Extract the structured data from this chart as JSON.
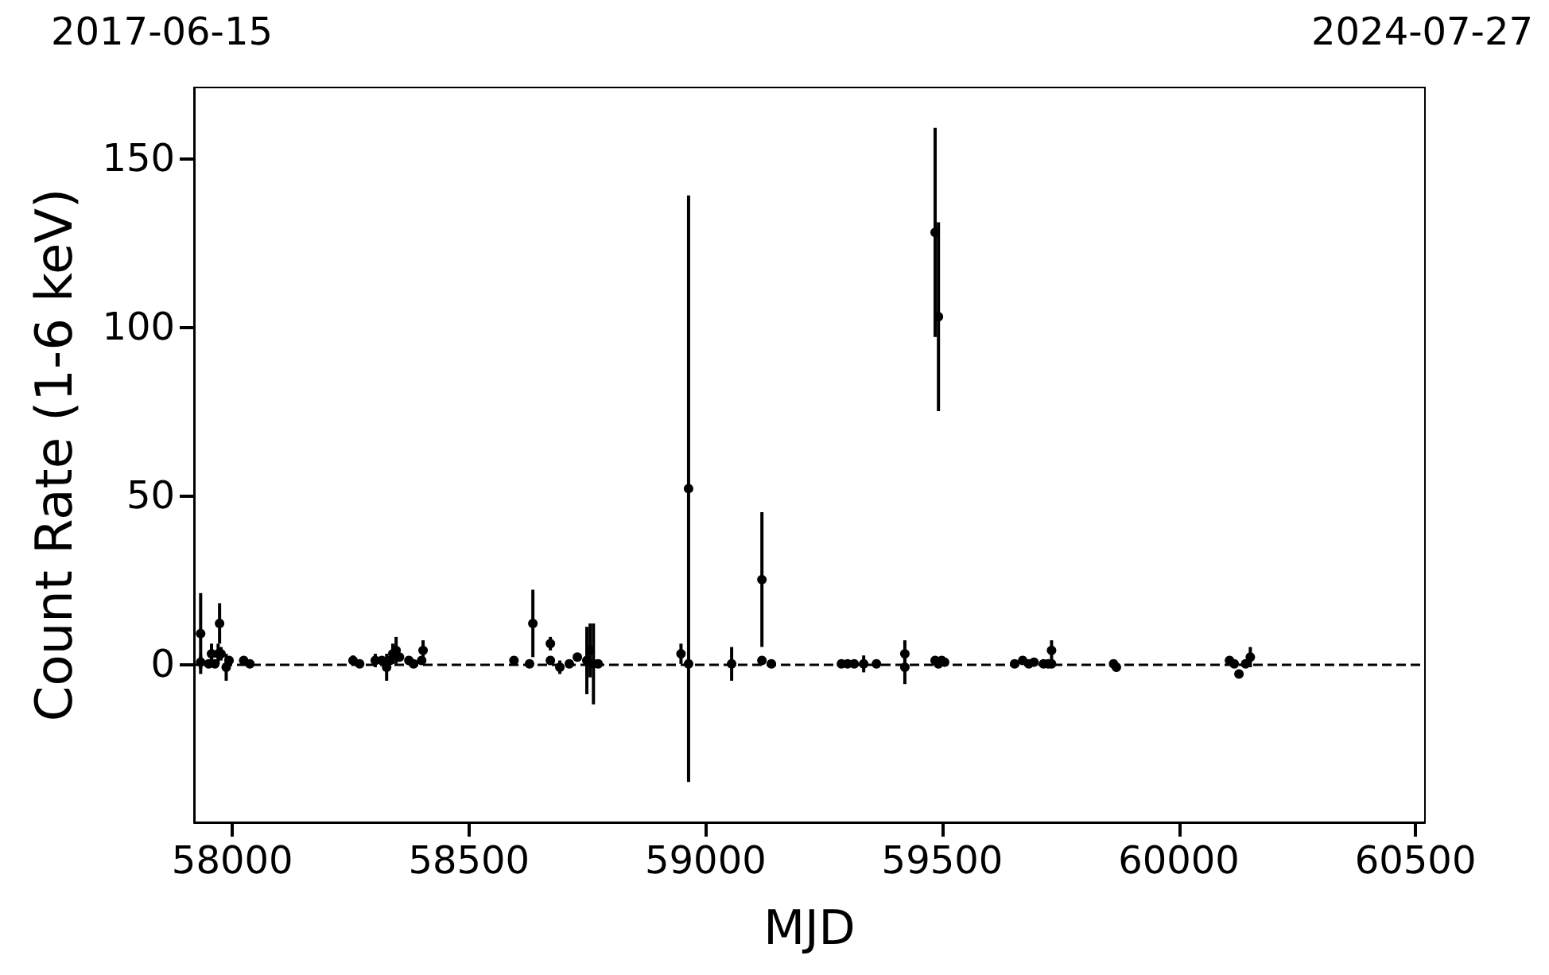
{
  "chart_data": {
    "type": "scatter",
    "xlabel": "MJD",
    "ylabel": "Count Rate (1-6 keV)",
    "annotations": [
      "2017-06-15",
      "2024-07-27"
    ],
    "x": [
      57933,
      57933,
      57950,
      57956,
      57963,
      57970,
      57973,
      57976,
      57987,
      57993,
      58024,
      58037,
      58255,
      58269,
      58302,
      58316,
      58326,
      58333,
      58339,
      58346,
      58353,
      58373,
      58383,
      58400,
      58403,
      58595,
      58628,
      58635,
      58672,
      58672,
      58692,
      58712,
      58729,
      58749,
      58756,
      58763,
      58773,
      58948,
      58964,
      58964,
      59055,
      59119,
      59119,
      59139,
      59287,
      59300,
      59314,
      59334,
      59361,
      59421,
      59421,
      59485,
      59485,
      59492,
      59492,
      59499,
      59505,
      59653,
      59670,
      59683,
      59694,
      59714,
      59724,
      59731,
      59731,
      59862,
      59868,
      60107,
      60117,
      60127,
      60141,
      60151
    ],
    "values": [
      9,
      0.5,
      0,
      3,
      0,
      3,
      12,
      3,
      -1,
      1,
      1,
      0,
      1,
      0,
      1,
      1,
      -1,
      1,
      3,
      4,
      2,
      1,
      0,
      1,
      4,
      1,
      0,
      12,
      6,
      1,
      -1,
      0,
      2,
      1,
      4,
      0,
      0,
      3,
      52,
      0,
      0,
      25,
      1,
      0,
      0,
      0,
      0,
      0,
      0,
      3,
      -1,
      128,
      1,
      103,
      0,
      1,
      0.5,
      0,
      1,
      0,
      0.5,
      0,
      0,
      4,
      0,
      0,
      -1,
      1,
      0,
      -3,
      0,
      2
    ],
    "errors": [
      12,
      2,
      null,
      3,
      null,
      3,
      6,
      2,
      4,
      null,
      null,
      null,
      1.5,
      null,
      2,
      null,
      4,
      null,
      3,
      4,
      null,
      null,
      null,
      null,
      3,
      null,
      null,
      10,
      2,
      null,
      2,
      null,
      null,
      10,
      8,
      12,
      null,
      3,
      87,
      null,
      5,
      20,
      null,
      null,
      null,
      null,
      null,
      2.5,
      null,
      4,
      5,
      31,
      null,
      28,
      null,
      null,
      null,
      null,
      null,
      null,
      null,
      null,
      null,
      3,
      null,
      null,
      null,
      null,
      null,
      null,
      null,
      3
    ],
    "color": "#000000",
    "marker": "circle",
    "xlim": [
      57919,
      60520
    ],
    "xticks": [
      58000,
      58500,
      59000,
      59500,
      60000,
      60500
    ],
    "ylim": [
      -47,
      171
    ],
    "yticks": [
      0,
      50,
      100,
      150
    ],
    "ref_lines": [
      {
        "axis": "y",
        "value": 0,
        "line_style": "dashed",
        "color": "#000000"
      }
    ],
    "grid": false
  }
}
